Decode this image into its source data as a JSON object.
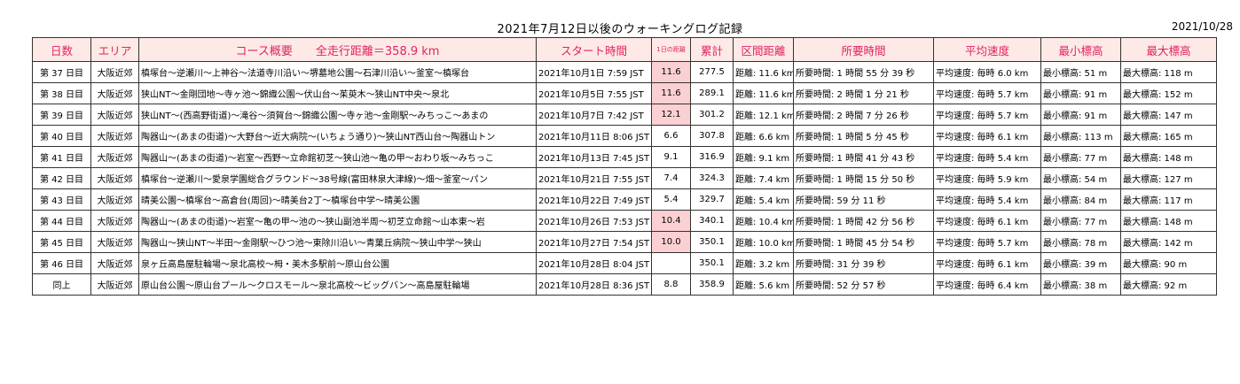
{
  "title": "2021年7月12日以後のウォーキングログ記録",
  "date": "2021/10/28",
  "headers": {
    "day": "日数",
    "area": "エリア",
    "course": "コース概要　　全走行距離＝358.9 km",
    "start": "スタート時間",
    "daily": "1日の距離",
    "cumulative": "累計",
    "distance": "区間距離",
    "duration": "所要時間",
    "speed": "平均速度",
    "min_alt": "最小標高",
    "max_alt": "最大標高"
  },
  "highlight_color": "#fbd0d3",
  "rows": [
    {
      "day": "第 37 日目",
      "area": "大阪近郊",
      "course": "槙塚台～逆瀬川～上神谷～法道寺川沿い～堺墓地公園～石津川沿い～釜室～槙塚台",
      "start": "2021年10月1日 7:59 JST",
      "daily": "11.6",
      "highlight": true,
      "cum": "277.5",
      "dist": "距離: 11.6 km",
      "time": "所要時間: 1 時間 55 分 39 秒",
      "speed": "平均速度: 毎時 6.0 km",
      "min": "最小標高: 51 m",
      "max": "最大標高: 118 m"
    },
    {
      "day": "第 38 日目",
      "area": "大阪近郊",
      "course": "狭山NT～金剛団地～寺ヶ池～錦織公園～伏山台～茱萸木～狭山NT中央～泉北",
      "start": "2021年10月5日 7:55 JST",
      "daily": "11.6",
      "highlight": true,
      "cum": "289.1",
      "dist": "距離: 11.6 km",
      "time": "所要時間: 2 時間 1 分 21 秒",
      "speed": "平均速度: 毎時 5.7 km",
      "min": "最小標高: 91 m",
      "max": "最大標高: 152 m"
    },
    {
      "day": "第 39 日目",
      "area": "大阪近郊",
      "course": "狭山NT～(西高野街道)～滝谷～須賀台～錦織公園～寺ヶ池～金剛駅～みちっこ～あまの",
      "start": "2021年10月7日 7:42 JST",
      "daily": "12.1",
      "highlight": true,
      "cum": "301.2",
      "dist": "距離: 12.1 km",
      "time": "所要時間: 2 時間 7 分 26 秒",
      "speed": "平均速度: 毎時 5.7 km",
      "min": "最小標高: 91 m",
      "max": "最大標高: 147 m"
    },
    {
      "day": "第 40 日目",
      "area": "大阪近郊",
      "course": "陶器山～(あまの街道)～大野台～近大病院～(いちょう通り)～狭山NT西山台～陶器山トン",
      "start": "2021年10月11日 8:06 JST",
      "daily": "6.6",
      "highlight": false,
      "cum": "307.8",
      "dist": "距離: 6.6 km",
      "time": "所要時間: 1 時間 5 分 45 秒",
      "speed": "平均速度: 毎時 6.1 km",
      "min": "最小標高: 113 m",
      "max": "最大標高: 165 m"
    },
    {
      "day": "第 41 日目",
      "area": "大阪近郊",
      "course": "陶器山～(あまの街道)～岩室～西野～立命館初芝～狭山池～亀の甲～おわり坂～みちっこ",
      "start": "2021年10月13日 7:45 JST",
      "daily": "9.1",
      "highlight": false,
      "cum": "316.9",
      "dist": "距離: 9.1 km",
      "time": "所要時間: 1 時間 41 分 43 秒",
      "speed": "平均速度: 毎時 5.4 km",
      "min": "最小標高: 77 m",
      "max": "最大標高: 148 m"
    },
    {
      "day": "第 42 日目",
      "area": "大阪近郊",
      "course": "槙塚台～逆瀬川～愛泉学園総合グラウンド～38号線(富田林泉大津線)～畑～釜室～パン",
      "start": "2021年10月21日 7:55 JST",
      "daily": "7.4",
      "highlight": false,
      "cum": "324.3",
      "dist": "距離: 7.4 km",
      "time": "所要時間: 1 時間 15 分 50 秒",
      "speed": "平均速度: 毎時 5.9 km",
      "min": "最小標高: 54 m",
      "max": "最大標高: 127 m"
    },
    {
      "day": "第 43 日目",
      "area": "大阪近郊",
      "course": "晴美公園～槙塚台～高倉台(周回)～晴美台2丁～槙塚台中学～晴美公園",
      "start": "2021年10月22日 7:49 JST",
      "daily": "5.4",
      "highlight": false,
      "cum": "329.7",
      "dist": "距離: 5.4 km",
      "time": "所要時間: 59 分 11 秒",
      "speed": "平均速度: 毎時 5.4 km",
      "min": "最小標高: 84 m",
      "max": "最大標高: 117 m"
    },
    {
      "day": "第 44 日目",
      "area": "大阪近郊",
      "course": "陶器山～(あまの街道)～岩室～亀の甲～池の～狭山副池半周～初芝立命館～山本東～岩",
      "start": "2021年10月26日 7:53 JST",
      "daily": "10.4",
      "highlight": true,
      "cum": "340.1",
      "dist": "距離: 10.4 km",
      "time": "所要時間: 1 時間 42 分 56 秒",
      "speed": "平均速度: 毎時 6.1 km",
      "min": "最小標高: 77 m",
      "max": "最大標高: 148 m"
    },
    {
      "day": "第 45 日目",
      "area": "大阪近郊",
      "course": "陶器山～狭山NT～半田～金剛駅～ひつ池～東除川沿い～青葉丘病院～狭山中学～狭山",
      "start": "2021年10月27日 7:54 JST",
      "daily": "10.0",
      "highlight": true,
      "cum": "350.1",
      "dist": "距離: 10.0 km",
      "time": "所要時間: 1 時間 45 分 54 秒",
      "speed": "平均速度: 毎時 5.7 km",
      "min": "最小標高: 78 m",
      "max": "最大標高: 142 m"
    },
    {
      "day": "第 46 日目",
      "area": "大阪近郊",
      "course": "泉ヶ丘高島屋駐輪場～泉北高校～栂・美木多駅前～原山台公園",
      "start": "2021年10月28日 8:04 JST",
      "daily": "",
      "highlight": false,
      "cum": "350.1",
      "dist": "距離: 3.2 km",
      "time": "所要時間: 31 分 39 秒",
      "speed": "平均速度: 毎時 6.1 km",
      "min": "最小標高: 39 m",
      "max": "最大標高: 90 m"
    },
    {
      "day": "同上",
      "area": "大阪近郊",
      "course": "原山台公園～原山台プール～クロスモール～泉北高校～ビッグバン～高島屋駐輪場",
      "start": "2021年10月28日 8:36 JST",
      "daily": "8.8",
      "highlight": false,
      "cum": "358.9",
      "dist": "距離: 5.6 km",
      "time": "所要時間: 52 分 57 秒",
      "speed": "平均速度: 毎時 6.4 km",
      "min": "最小標高: 38 m",
      "max": "最大標高: 92 m"
    }
  ]
}
